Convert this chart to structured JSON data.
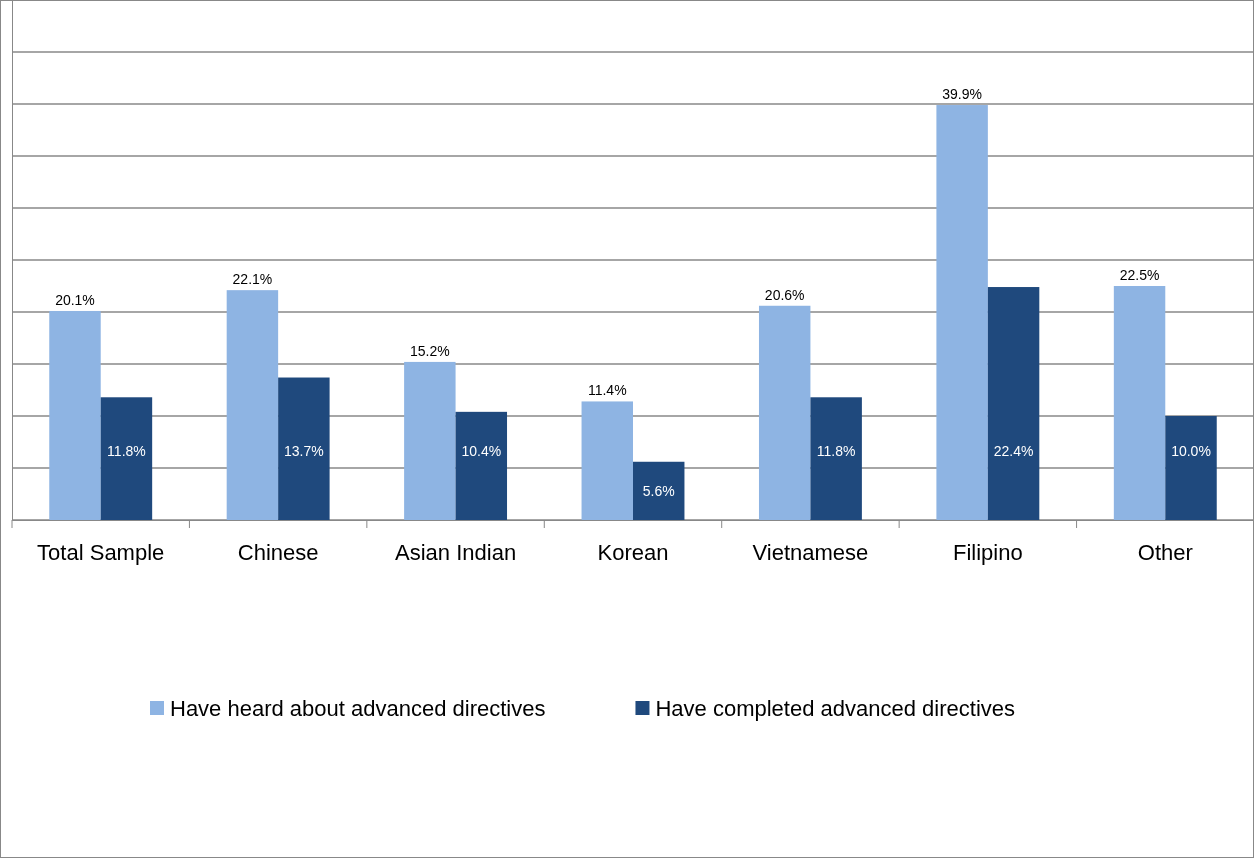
{
  "chart_data": {
    "type": "bar",
    "categories": [
      "Total Sample",
      "Chinese",
      "Asian Indian",
      "Korean",
      "Vietnamese",
      "Filipino",
      "Other"
    ],
    "series": [
      {
        "name": "Have heard about advanced directives",
        "color": "#8eb4e3",
        "values": [
          20.1,
          22.1,
          15.2,
          11.4,
          20.6,
          39.9,
          22.5
        ],
        "value_labels": [
          "20.1%",
          "22.1%",
          "15.2%",
          "11.4%",
          "20.6%",
          "39.9%",
          "22.5%"
        ]
      },
      {
        "name": "Have completed advanced directives",
        "color": "#1f497d",
        "values": [
          11.8,
          13.7,
          10.4,
          5.6,
          11.8,
          22.4,
          10.0
        ],
        "value_labels": [
          "11.8%",
          "13.7%",
          "10.4%",
          "5.6%",
          "11.8%",
          "22.4%",
          "10.0%"
        ]
      }
    ],
    "ylim": [
      0,
      50
    ],
    "yticks": [
      {
        "value": 0,
        "label": null
      },
      {
        "value": 5,
        "label": null
      },
      {
        "value": 10,
        "label": null
      },
      {
        "value": 15,
        "label": null
      },
      {
        "value": 20,
        "label": null
      },
      {
        "value": 25,
        "label": null
      },
      {
        "value": 30,
        "label": null
      },
      {
        "value": 35,
        "label": null
      },
      {
        "value": 40,
        "label": null
      },
      {
        "value": 45,
        "label": null
      },
      {
        "value": 50,
        "label": null
      }
    ],
    "tick_labels": "x",
    "grid": "y",
    "legend": "bottom"
  }
}
